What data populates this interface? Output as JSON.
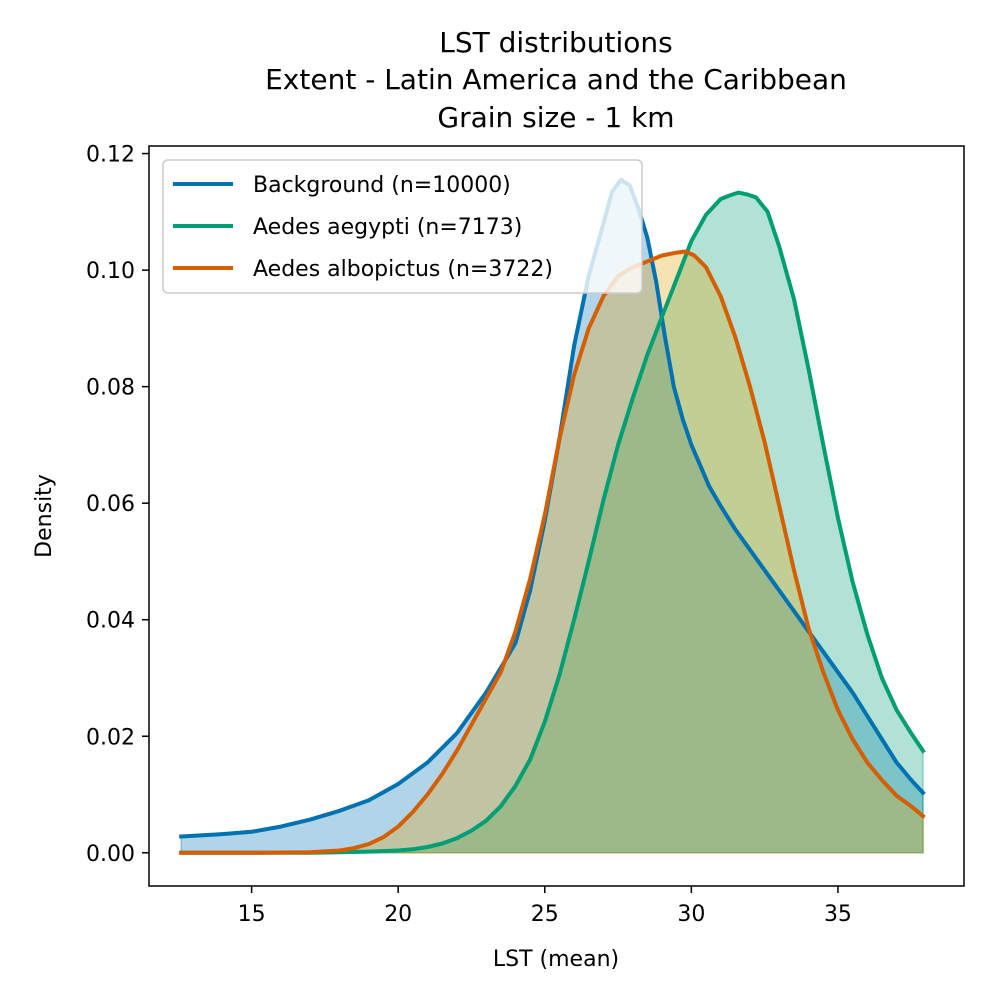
{
  "chart_data": {
    "type": "area",
    "title": [
      "LST distributions",
      "Extent - Latin America and the Caribbean",
      "Grain size - 1 km"
    ],
    "xlabel": "LST (mean)",
    "ylabel": "Density",
    "xlim": [
      11.5,
      39.3
    ],
    "ylim": [
      -0.0057,
      0.1213
    ],
    "xticks": [
      15,
      20,
      25,
      30,
      35
    ],
    "xtick_labels": [
      "15",
      "20",
      "25",
      "30",
      "35"
    ],
    "yticks": [
      0,
      0.02,
      0.04,
      0.06,
      0.08,
      0.1,
      0.12
    ],
    "ytick_labels": [
      "0.00",
      "0.02",
      "0.04",
      "0.06",
      "0.08",
      "0.10",
      "0.12"
    ],
    "grid": false,
    "legend_position": "upper-left",
    "series": [
      {
        "name": "Background (n=10000)",
        "color": "#0072b2",
        "fill_color": "#0072b2",
        "x": [
          12.6,
          14.0,
          15.0,
          16.0,
          17.0,
          18.0,
          19.0,
          20.0,
          21.0,
          22.0,
          23.0,
          24.0,
          24.5,
          25.0,
          25.5,
          26.0,
          26.5,
          27.0,
          27.3,
          27.6,
          27.9,
          28.2,
          28.5,
          28.8,
          29.1,
          29.4,
          29.7,
          30.0,
          30.3,
          30.6,
          31.0,
          31.5,
          32.0,
          32.5,
          33.0,
          33.5,
          34.0,
          34.5,
          35.0,
          35.5,
          36.0,
          36.5,
          37.0,
          37.5,
          37.9
        ],
        "y": [
          0.0028,
          0.0032,
          0.0036,
          0.0045,
          0.0057,
          0.0072,
          0.009,
          0.0118,
          0.0155,
          0.0205,
          0.0275,
          0.036,
          0.045,
          0.057,
          0.071,
          0.087,
          0.099,
          0.108,
          0.1135,
          0.1155,
          0.1145,
          0.1105,
          0.1055,
          0.098,
          0.0885,
          0.08,
          0.0745,
          0.07,
          0.0665,
          0.063,
          0.0595,
          0.0555,
          0.052,
          0.0485,
          0.045,
          0.0415,
          0.038,
          0.0345,
          0.031,
          0.0275,
          0.0235,
          0.0195,
          0.0155,
          0.0125,
          0.0103
        ]
      },
      {
        "name": "Aedes aegypti (n=7173)",
        "color": "#009e73",
        "fill_color": "#009e73",
        "x": [
          12.6,
          15.0,
          17.0,
          18.0,
          19.0,
          20.0,
          20.5,
          21.0,
          21.5,
          22.0,
          22.5,
          23.0,
          23.5,
          24.0,
          24.5,
          25.0,
          25.5,
          26.0,
          26.5,
          27.0,
          27.5,
          28.0,
          28.5,
          29.0,
          29.5,
          30.0,
          30.5,
          31.0,
          31.3,
          31.6,
          31.9,
          32.2,
          32.6,
          33.0,
          33.5,
          34.0,
          34.5,
          35.0,
          35.5,
          36.0,
          36.5,
          37.0,
          37.5,
          37.9
        ],
        "y": [
          0.0,
          0.0,
          0.0,
          0.0001,
          0.0002,
          0.0004,
          0.0006,
          0.001,
          0.0016,
          0.0025,
          0.0038,
          0.0055,
          0.008,
          0.0115,
          0.016,
          0.0225,
          0.0305,
          0.04,
          0.05,
          0.0605,
          0.07,
          0.078,
          0.0855,
          0.092,
          0.0985,
          0.105,
          0.1095,
          0.1122,
          0.1128,
          0.1133,
          0.113,
          0.1125,
          0.11,
          0.104,
          0.095,
          0.083,
          0.07,
          0.0575,
          0.0465,
          0.0375,
          0.03,
          0.0245,
          0.0205,
          0.0175
        ]
      },
      {
        "name": "Aedes albopictus (n=3722)",
        "color": "#d55e00",
        "fill_color": "#e69f00",
        "x": [
          12.6,
          15.0,
          17.0,
          18.0,
          18.5,
          19.0,
          19.5,
          20.0,
          20.5,
          21.0,
          21.5,
          22.0,
          22.5,
          23.0,
          23.5,
          24.0,
          24.5,
          25.0,
          25.5,
          26.0,
          26.5,
          27.0,
          27.5,
          28.0,
          28.5,
          29.0,
          29.5,
          29.8,
          30.1,
          30.5,
          31.0,
          31.5,
          32.0,
          32.5,
          33.0,
          33.5,
          34.0,
          34.5,
          35.0,
          35.5,
          36.0,
          36.5,
          37.0,
          37.5,
          37.9
        ],
        "y": [
          0.0,
          0.0,
          0.0001,
          0.0004,
          0.0008,
          0.0015,
          0.0027,
          0.0045,
          0.007,
          0.01,
          0.0135,
          0.0175,
          0.022,
          0.0265,
          0.031,
          0.038,
          0.047,
          0.058,
          0.071,
          0.082,
          0.09,
          0.0955,
          0.099,
          0.1005,
          0.1015,
          0.1025,
          0.103,
          0.1032,
          0.1025,
          0.1005,
          0.0955,
          0.0885,
          0.08,
          0.0705,
          0.0595,
          0.0485,
          0.0385,
          0.031,
          0.0245,
          0.0195,
          0.0155,
          0.0125,
          0.0098,
          0.008,
          0.0063
        ]
      }
    ]
  }
}
